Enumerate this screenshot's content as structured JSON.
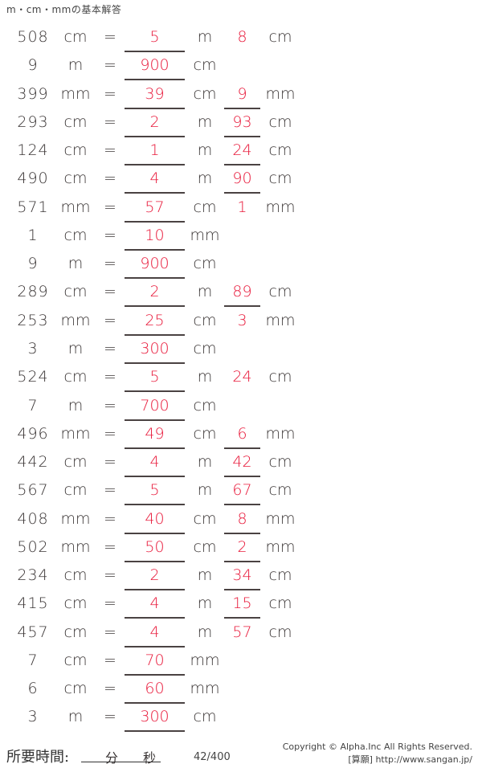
{
  "title": "m・cm・mmの基本解答",
  "rows": [
    {
      "num": "508",
      "u1": "cm",
      "a1": "5",
      "u2": "m",
      "a2": "8",
      "u3": "cm",
      "line2": false
    },
    {
      "num": "9",
      "u1": "m",
      "a1": "900",
      "u2": "cm",
      "a2": "",
      "u3": "",
      "line2": false
    },
    {
      "num": "399",
      "u1": "mm",
      "a1": "39",
      "u2": "cm",
      "a2": "9",
      "u3": "mm",
      "line2": true
    },
    {
      "num": "293",
      "u1": "cm",
      "a1": "2",
      "u2": "m",
      "a2": "93",
      "u3": "cm",
      "line2": true
    },
    {
      "num": "124",
      "u1": "cm",
      "a1": "1",
      "u2": "m",
      "a2": "24",
      "u3": "cm",
      "line2": true
    },
    {
      "num": "490",
      "u1": "cm",
      "a1": "4",
      "u2": "m",
      "a2": "90",
      "u3": "cm",
      "line2": true
    },
    {
      "num": "571",
      "u1": "mm",
      "a1": "57",
      "u2": "cm",
      "a2": "1",
      "u3": "mm",
      "line2": false
    },
    {
      "num": "1",
      "u1": "cm",
      "a1": "10",
      "u2": "mm",
      "a2": "",
      "u3": "",
      "line2": false
    },
    {
      "num": "9",
      "u1": "m",
      "a1": "900",
      "u2": "cm",
      "a2": "",
      "u3": "",
      "line2": false
    },
    {
      "num": "289",
      "u1": "cm",
      "a1": "2",
      "u2": "m",
      "a2": "89",
      "u3": "cm",
      "line2": true
    },
    {
      "num": "253",
      "u1": "mm",
      "a1": "25",
      "u2": "cm",
      "a2": "3",
      "u3": "mm",
      "line2": false
    },
    {
      "num": "3",
      "u1": "m",
      "a1": "300",
      "u2": "cm",
      "a2": "",
      "u3": "",
      "line2": false
    },
    {
      "num": "524",
      "u1": "cm",
      "a1": "5",
      "u2": "m",
      "a2": "24",
      "u3": "cm",
      "line2": false
    },
    {
      "num": "7",
      "u1": "m",
      "a1": "700",
      "u2": "cm",
      "a2": "",
      "u3": "",
      "line2": false
    },
    {
      "num": "496",
      "u1": "mm",
      "a1": "49",
      "u2": "cm",
      "a2": "6",
      "u3": "mm",
      "line2": true
    },
    {
      "num": "442",
      "u1": "cm",
      "a1": "4",
      "u2": "m",
      "a2": "42",
      "u3": "cm",
      "line2": true
    },
    {
      "num": "567",
      "u1": "cm",
      "a1": "5",
      "u2": "m",
      "a2": "67",
      "u3": "cm",
      "line2": true
    },
    {
      "num": "408",
      "u1": "mm",
      "a1": "40",
      "u2": "cm",
      "a2": "8",
      "u3": "mm",
      "line2": true
    },
    {
      "num": "502",
      "u1": "mm",
      "a1": "50",
      "u2": "cm",
      "a2": "2",
      "u3": "mm",
      "line2": true
    },
    {
      "num": "234",
      "u1": "cm",
      "a1": "2",
      "u2": "m",
      "a2": "34",
      "u3": "cm",
      "line2": true
    },
    {
      "num": "415",
      "u1": "cm",
      "a1": "4",
      "u2": "m",
      "a2": "15",
      "u3": "cm",
      "line2": true
    },
    {
      "num": "457",
      "u1": "cm",
      "a1": "4",
      "u2": "m",
      "a2": "57",
      "u3": "cm",
      "line2": false
    },
    {
      "num": "7",
      "u1": "cm",
      "a1": "70",
      "u2": "mm",
      "a2": "",
      "u3": "",
      "line2": false
    },
    {
      "num": "6",
      "u1": "cm",
      "a1": "60",
      "u2": "mm",
      "a2": "",
      "u3": "",
      "line2": false
    },
    {
      "num": "3",
      "u1": "m",
      "a1": "300",
      "u2": "cm",
      "a2": "",
      "u3": "",
      "line2": false
    }
  ],
  "equals": "=",
  "footer": {
    "time_label": "所要時間:",
    "minutes": "分",
    "seconds": "秒",
    "page": "42/400",
    "copyright": "Copyright © Alpha.Inc All Rights Reserved.",
    "site": "[算願] http://www.sangan.jp/"
  },
  "colors": {
    "answer": "#e8193a",
    "text": "#3a3535"
  }
}
